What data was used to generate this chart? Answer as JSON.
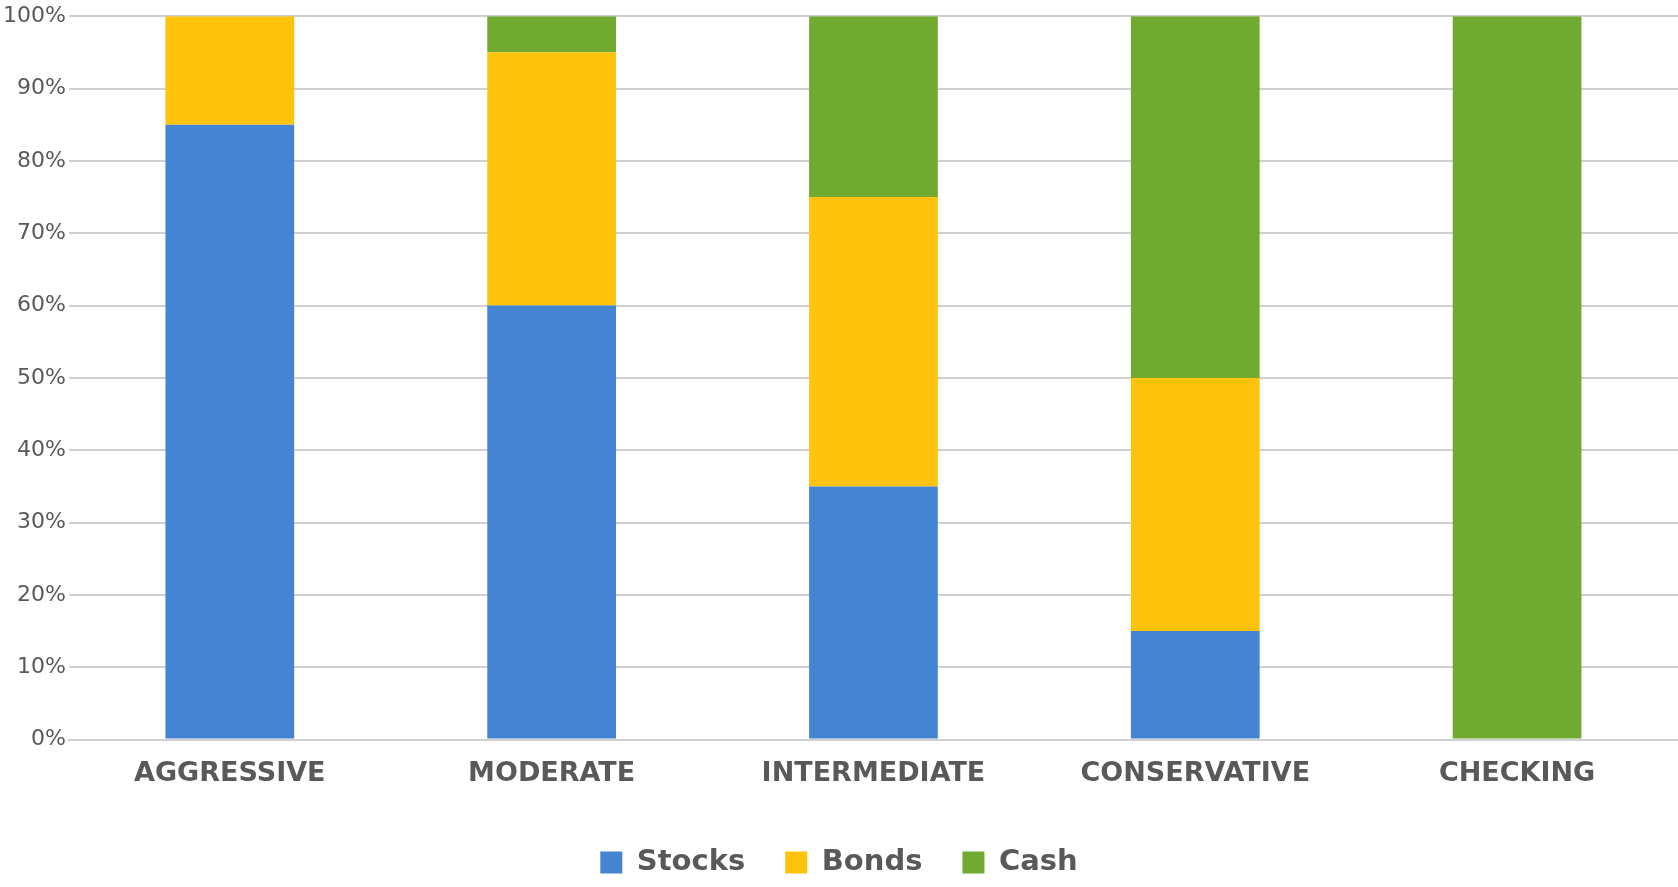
{
  "chart_data": {
    "type": "bar",
    "stacked": true,
    "categories": [
      "AGGRESSIVE",
      "MODERATE",
      "INTERMEDIATE",
      "CONSERVATIVE",
      "CHECKING"
    ],
    "series": [
      {
        "name": "Stocks",
        "color": "#4584d3",
        "values": [
          85,
          60,
          35,
          15,
          0
        ]
      },
      {
        "name": "Bonds",
        "color": "#fec30a",
        "values": [
          15,
          35,
          40,
          35,
          0
        ]
      },
      {
        "name": "Cash",
        "color": "#71aa31",
        "values": [
          0,
          5,
          25,
          50,
          100
        ]
      }
    ],
    "ylim": [
      0,
      100
    ],
    "yticks": [
      {
        "value": 0,
        "label": "0%"
      },
      {
        "value": 10,
        "label": "10%"
      },
      {
        "value": 20,
        "label": "20%"
      },
      {
        "value": 30,
        "label": "30%"
      },
      {
        "value": 40,
        "label": "40%"
      },
      {
        "value": 50,
        "label": "50%"
      },
      {
        "value": 60,
        "label": "60%"
      },
      {
        "value": 70,
        "label": "70%"
      },
      {
        "value": 80,
        "label": "80%"
      },
      {
        "value": 90,
        "label": "90%"
      },
      {
        "value": 100,
        "label": "100%"
      }
    ],
    "grid": "y",
    "legend": "bottom"
  }
}
